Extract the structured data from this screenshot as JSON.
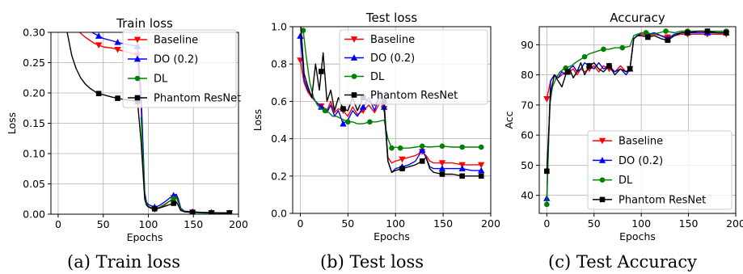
{
  "colors": {
    "baseline": "#ff0000",
    "dropout": "#0000ff",
    "droplayer": "#008000",
    "phantom": "#000000",
    "grid": "#b0b0b0"
  },
  "captions": [
    "(a) Train loss",
    "(b) Test loss",
    "(c) Test Accuracy"
  ],
  "chart_data": [
    {
      "type": "line",
      "title": "Train loss",
      "xlabel": "Epochs",
      "ylabel": "Loss",
      "xlim": [
        -8,
        200
      ],
      "ylim": [
        0,
        0.3
      ],
      "xticks": [
        0,
        50,
        100,
        150,
        200
      ],
      "yticks": [
        0.0,
        0.05,
        0.1,
        0.15,
        0.2,
        0.25,
        0.3
      ],
      "ytick_labels": [
        "0.00",
        "0.05",
        "0.10",
        "0.15",
        "0.20",
        "0.25",
        "0.30"
      ],
      "grid": true,
      "legend_position": "top-right",
      "series": [
        {
          "name": "Baseline",
          "color": "#ff0000",
          "marker": "triangle-down",
          "marker_x": [
            10,
            45,
            66,
            88,
            107,
            128,
            149,
            170,
            190
          ],
          "x": [
            10,
            20,
            30,
            40,
            45,
            50,
            60,
            70,
            80,
            88,
            92,
            96,
            98,
            100,
            103,
            107,
            112,
            118,
            124,
            128,
            131,
            133,
            136,
            140,
            149,
            160,
            170,
            180,
            190
          ],
          "y": [
            0.33,
            0.305,
            0.292,
            0.282,
            0.279,
            0.276,
            0.274,
            0.27,
            0.266,
            0.262,
            0.18,
            0.03,
            0.015,
            0.012,
            0.01,
            0.008,
            0.01,
            0.015,
            0.022,
            0.027,
            0.03,
            0.022,
            0.008,
            0.004,
            0.003,
            0.003,
            0.002,
            0.002,
            0.002
          ]
        },
        {
          "name": "DO (0.2)",
          "color": "#0000ff",
          "marker": "triangle-up",
          "marker_x": [
            10,
            45,
            66,
            88,
            107,
            128,
            149,
            170,
            190
          ],
          "x": [
            10,
            20,
            30,
            40,
            45,
            50,
            60,
            70,
            80,
            88,
            92,
            96,
            98,
            100,
            103,
            107,
            112,
            118,
            124,
            128,
            131,
            133,
            136,
            140,
            149,
            160,
            170,
            180,
            190
          ],
          "y": [
            0.34,
            0.32,
            0.306,
            0.298,
            0.294,
            0.29,
            0.286,
            0.282,
            0.279,
            0.277,
            0.2,
            0.036,
            0.02,
            0.016,
            0.014,
            0.012,
            0.014,
            0.02,
            0.027,
            0.031,
            0.033,
            0.026,
            0.01,
            0.005,
            0.004,
            0.003,
            0.003,
            0.002,
            0.002
          ]
        },
        {
          "name": "DL",
          "color": "#008000",
          "marker": "circle",
          "marker_x": [
            107,
            128,
            149,
            170,
            190
          ],
          "x": [
            92,
            96,
            98,
            100,
            103,
            107,
            112,
            118,
            124,
            128,
            131,
            133,
            136,
            140,
            149,
            160,
            170,
            180,
            190
          ],
          "y": [
            0.16,
            0.03,
            0.018,
            0.013,
            0.011,
            0.009,
            0.011,
            0.016,
            0.022,
            0.026,
            0.028,
            0.02,
            0.008,
            0.004,
            0.003,
            0.002,
            0.002,
            0.002,
            0.002
          ]
        },
        {
          "name": "Phantom ResNet",
          "color": "#000000",
          "marker": "square",
          "marker_x": [
            45,
            66,
            88,
            107,
            128,
            149,
            170,
            190
          ],
          "x": [
            10,
            15,
            20,
            25,
            30,
            35,
            40,
            45,
            50,
            60,
            70,
            80,
            88,
            92,
            96,
            98,
            100,
            103,
            107,
            112,
            118,
            124,
            128,
            131,
            133,
            136,
            140,
            149,
            160,
            170,
            180,
            190
          ],
          "y": [
            0.3,
            0.262,
            0.24,
            0.225,
            0.215,
            0.208,
            0.203,
            0.199,
            0.197,
            0.193,
            0.19,
            0.188,
            0.186,
            0.12,
            0.025,
            0.015,
            0.012,
            0.01,
            0.009,
            0.01,
            0.013,
            0.016,
            0.018,
            0.02,
            0.015,
            0.006,
            0.004,
            0.003,
            0.003,
            0.002,
            0.002,
            0.002
          ]
        }
      ]
    },
    {
      "type": "line",
      "title": "Test loss",
      "xlabel": "Epochs",
      "ylabel": "Loss",
      "xlim": [
        -8,
        200
      ],
      "ylim": [
        0,
        1.0
      ],
      "xticks": [
        0,
        50,
        100,
        150,
        200
      ],
      "yticks": [
        0.0,
        0.2,
        0.4,
        0.6,
        0.8,
        1.0
      ],
      "ytick_labels": [
        "0.0",
        "0.2",
        "0.4",
        "0.6",
        "0.8",
        "1.0"
      ],
      "grid": true,
      "legend_position": "top-right",
      "series": [
        {
          "name": "Baseline",
          "color": "#ff0000",
          "marker": "triangle-down",
          "marker_x": [
            0,
            22,
            45,
            66,
            88,
            107,
            128,
            149,
            170,
            190
          ],
          "x": [
            0,
            4,
            8,
            12,
            16,
            20,
            24,
            28,
            32,
            36,
            40,
            45,
            50,
            55,
            60,
            66,
            72,
            78,
            84,
            88,
            92,
            96,
            100,
            107,
            114,
            121,
            128,
            132,
            136,
            140,
            149,
            160,
            170,
            180,
            190
          ],
          "y": [
            0.82,
            0.7,
            0.65,
            0.62,
            0.6,
            0.58,
            0.57,
            0.55,
            0.6,
            0.54,
            0.56,
            0.55,
            0.52,
            0.57,
            0.53,
            0.55,
            0.58,
            0.54,
            0.6,
            0.56,
            0.3,
            0.27,
            0.28,
            0.29,
            0.3,
            0.31,
            0.33,
            0.31,
            0.28,
            0.27,
            0.27,
            0.27,
            0.26,
            0.26,
            0.26
          ]
        },
        {
          "name": "DO (0.2)",
          "color": "#0000ff",
          "marker": "triangle-up",
          "marker_x": [
            0,
            22,
            45,
            66,
            88,
            107,
            128,
            149,
            170,
            190
          ],
          "x": [
            0,
            4,
            8,
            12,
            16,
            20,
            24,
            28,
            32,
            36,
            40,
            45,
            50,
            55,
            60,
            66,
            72,
            78,
            84,
            88,
            92,
            96,
            100,
            107,
            114,
            121,
            128,
            132,
            136,
            140,
            149,
            160,
            170,
            180,
            190
          ],
          "y": [
            0.95,
            0.72,
            0.66,
            0.63,
            0.6,
            0.58,
            0.56,
            0.54,
            0.58,
            0.52,
            0.55,
            0.48,
            0.5,
            0.55,
            0.52,
            0.57,
            0.62,
            0.55,
            0.65,
            0.57,
            0.28,
            0.22,
            0.24,
            0.25,
            0.26,
            0.28,
            0.34,
            0.3,
            0.25,
            0.24,
            0.24,
            0.24,
            0.24,
            0.23,
            0.23
          ]
        },
        {
          "name": "DL",
          "color": "#008000",
          "marker": "circle",
          "marker_x": [
            3,
            26,
            50,
            73,
            96,
            105,
            128,
            149,
            170,
            190
          ],
          "x": [
            3,
            6,
            10,
            14,
            18,
            22,
            26,
            30,
            34,
            38,
            42,
            46,
            50,
            55,
            60,
            66,
            73,
            80,
            88,
            92,
            96,
            100,
            105,
            114,
            121,
            128,
            135,
            149,
            160,
            170,
            180,
            190
          ],
          "y": [
            0.98,
            0.85,
            0.7,
            0.62,
            0.58,
            0.56,
            0.55,
            0.54,
            0.52,
            0.52,
            0.51,
            0.5,
            0.49,
            0.49,
            0.48,
            0.48,
            0.49,
            0.49,
            0.5,
            0.4,
            0.35,
            0.355,
            0.35,
            0.35,
            0.355,
            0.36,
            0.355,
            0.36,
            0.355,
            0.355,
            0.355,
            0.355
          ]
        },
        {
          "name": "Phantom ResNet",
          "color": "#000000",
          "marker": "square",
          "marker_x": [
            0,
            22,
            45,
            66,
            88,
            107,
            128,
            149,
            170,
            190
          ],
          "x": [
            0,
            4,
            8,
            12,
            16,
            20,
            24,
            28,
            32,
            36,
            40,
            45,
            50,
            55,
            60,
            66,
            72,
            78,
            84,
            88,
            92,
            96,
            100,
            107,
            114,
            121,
            128,
            132,
            136,
            140,
            149,
            160,
            170,
            180,
            190
          ],
          "y": [
            1.05,
            0.75,
            0.68,
            0.62,
            0.8,
            0.66,
            0.86,
            0.6,
            0.66,
            0.55,
            0.62,
            0.56,
            0.55,
            0.62,
            0.55,
            0.62,
            0.6,
            0.58,
            0.62,
            0.6,
            0.28,
            0.22,
            0.23,
            0.24,
            0.25,
            0.26,
            0.28,
            0.3,
            0.24,
            0.22,
            0.21,
            0.21,
            0.2,
            0.2,
            0.2
          ]
        }
      ]
    },
    {
      "type": "line",
      "title": "Accuracy",
      "xlabel": "Epochs",
      "ylabel": "Acc",
      "xlim": [
        -8,
        200
      ],
      "ylim": [
        34,
        96
      ],
      "xticks": [
        0,
        50,
        100,
        150,
        200
      ],
      "yticks": [
        40,
        50,
        60,
        70,
        80,
        90
      ],
      "ytick_labels": [
        "40",
        "50",
        "60",
        "70",
        "80",
        "90"
      ],
      "grid": true,
      "legend_position": "lower-right",
      "series": [
        {
          "name": "Baseline",
          "color": "#ff0000",
          "marker": "triangle-down",
          "marker_x": [
            0,
            22,
            45,
            66,
            88,
            107,
            128,
            149,
            170,
            190
          ],
          "x": [
            0,
            4,
            8,
            12,
            16,
            20,
            24,
            28,
            32,
            36,
            40,
            45,
            50,
            55,
            60,
            66,
            72,
            78,
            84,
            88,
            92,
            96,
            100,
            107,
            114,
            121,
            128,
            135,
            142,
            149,
            160,
            170,
            180,
            190
          ],
          "y": [
            72,
            78,
            80,
            79,
            80,
            81,
            81,
            82,
            80,
            82,
            81,
            82,
            83,
            81,
            83,
            82,
            81,
            83,
            81,
            82,
            92,
            93,
            93.5,
            93,
            93.5,
            93,
            92.5,
            93,
            93.5,
            93.5,
            93.5,
            93.5,
            93.5,
            93.5
          ]
        },
        {
          "name": "DO (0.2)",
          "color": "#0000ff",
          "marker": "triangle-up",
          "marker_x": [
            0,
            22,
            45,
            66,
            88,
            107,
            128,
            149,
            170,
            190
          ],
          "x": [
            0,
            4,
            8,
            12,
            16,
            20,
            24,
            28,
            32,
            36,
            40,
            45,
            50,
            55,
            60,
            66,
            72,
            78,
            84,
            88,
            92,
            96,
            100,
            107,
            114,
            121,
            128,
            135,
            142,
            149,
            160,
            170,
            180,
            190
          ],
          "y": [
            39,
            78,
            80,
            79,
            81,
            80,
            82,
            83,
            81,
            82,
            84,
            83,
            82,
            84,
            82,
            83,
            81,
            82,
            80,
            82,
            92,
            93,
            94,
            93.5,
            94,
            93,
            92,
            93.5,
            94,
            94,
            94,
            94,
            94,
            94
          ]
        },
        {
          "name": "DL",
          "color": "#008000",
          "marker": "circle",
          "marker_x": [
            0,
            20,
            40,
            60,
            80,
            105,
            126,
            149,
            170,
            190
          ],
          "x": [
            0,
            3,
            6,
            10,
            14,
            18,
            22,
            26,
            30,
            35,
            40,
            45,
            50,
            55,
            60,
            66,
            72,
            80,
            88,
            92,
            96,
            100,
            105,
            112,
            119,
            126,
            135,
            142,
            149,
            160,
            170,
            180,
            190
          ],
          "y": [
            37,
            70,
            76,
            79,
            81,
            82,
            82.5,
            83,
            84,
            85,
            86,
            87,
            87.5,
            88,
            88.5,
            88.5,
            89,
            89,
            89.5,
            93,
            93.5,
            94,
            94,
            93.5,
            94,
            94.5,
            94,
            94.5,
            94.5,
            94.5,
            94.5,
            94.5,
            94.5
          ]
        },
        {
          "name": "Phantom ResNet",
          "color": "#000000",
          "marker": "square",
          "marker_x": [
            0,
            22,
            45,
            66,
            88,
            107,
            128,
            149,
            170,
            190
          ],
          "x": [
            0,
            4,
            8,
            12,
            16,
            20,
            24,
            28,
            32,
            36,
            40,
            45,
            50,
            55,
            60,
            66,
            72,
            78,
            84,
            88,
            92,
            96,
            100,
            107,
            114,
            121,
            128,
            135,
            142,
            149,
            160,
            170,
            180,
            190
          ],
          "y": [
            48,
            74,
            80,
            78,
            76,
            80,
            82,
            79,
            81,
            84,
            80,
            83,
            84,
            82,
            81,
            83,
            80,
            82,
            81,
            82,
            92,
            93,
            93,
            92.5,
            93,
            92,
            91.5,
            93,
            94,
            94,
            94.5,
            94.5,
            94,
            94
          ]
        }
      ]
    }
  ]
}
